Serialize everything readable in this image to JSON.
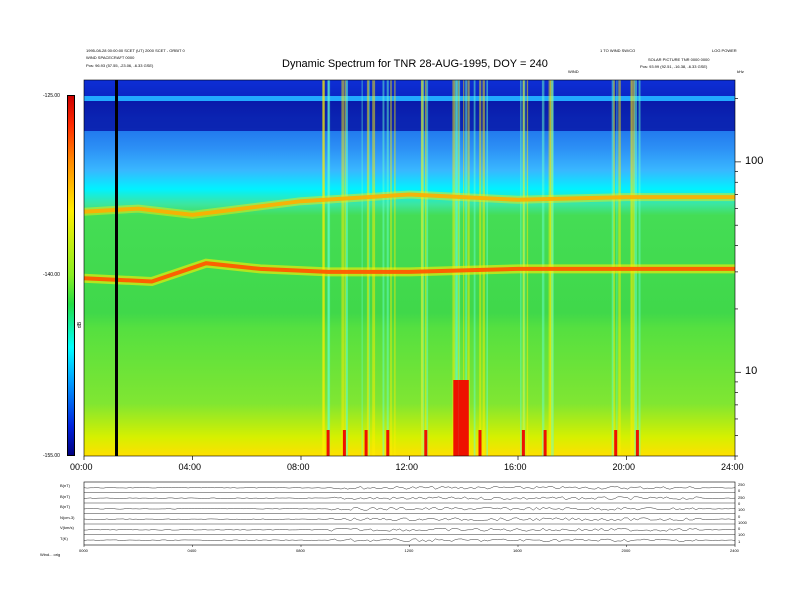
{
  "header": {
    "title": "Dynamic Spectrum for TNR 28-AUG-1995, DOY = 240",
    "left_line1": "1995-08-28 00:00:00 SCET (UT) 2000 SCET - ORBIT 0",
    "left_line2": "WIND SPACECRAFT 0000",
    "left_line3": "Pos:   96.93 (57.55, -23.06, -6.33 GSE)",
    "right_line1": "1 TO WIND SW/CO",
    "right_line1b": "LOG POWER",
    "right_line2": "SOLAR PICTURE   TNR 0000 0000",
    "right_line3": "Pos:   93.99 (92.51, -16.38, -6.33 GSE)",
    "center_small": "WIND",
    "khz_label": "kHz"
  },
  "colorbar": {
    "label": "dB",
    "ticks": [
      "-125.00",
      "-140.00",
      "-155.00"
    ]
  },
  "chart_data": {
    "type": "heatmap",
    "title": "Dynamic Spectrum for TNR 28-AUG-1995, DOY = 240",
    "x_ticks": [
      "00:00",
      "04:00",
      "08:00",
      "12:00",
      "16:00",
      "20:00",
      "24:00"
    ],
    "x_range_hours": [
      0,
      24
    ],
    "y_scale": "log",
    "y_range_khz": [
      4,
      245
    ],
    "y_ticks": [
      {
        "value": 10,
        "label": "10"
      },
      {
        "value": 100,
        "label": "100"
      }
    ],
    "color_range_db": [
      -155,
      -125
    ],
    "plasma_line_lower_khz": [
      {
        "t": 0.0,
        "f": 28
      },
      {
        "t": 2.5,
        "f": 27
      },
      {
        "t": 4.5,
        "f": 33
      },
      {
        "t": 6.5,
        "f": 31
      },
      {
        "t": 9.0,
        "f": 30
      },
      {
        "t": 12.0,
        "f": 30
      },
      {
        "t": 16.0,
        "f": 31
      },
      {
        "t": 20.0,
        "f": 31
      },
      {
        "t": 24.0,
        "f": 31
      }
    ],
    "plasma_line_upper_khz": [
      {
        "t": 0.0,
        "f": 58
      },
      {
        "t": 2.0,
        "f": 60
      },
      {
        "t": 4.0,
        "f": 56
      },
      {
        "t": 8.0,
        "f": 65
      },
      {
        "t": 12.0,
        "f": 70
      },
      {
        "t": 16.0,
        "f": 66
      },
      {
        "t": 20.0,
        "f": 68
      },
      {
        "t": 24.0,
        "f": 68
      }
    ],
    "bursts_hours": [
      9.0,
      9.6,
      10.4,
      11.2,
      12.6,
      13.8,
      14.0,
      14.6,
      16.2,
      17.0,
      19.6,
      20.4
    ],
    "vertical_marker_hour": 1.2
  },
  "panels": {
    "labels": [
      "B(nT)",
      "B(nT)",
      "B(nT)",
      "N(cm-3)",
      "V(km/s)",
      "T(K)"
    ],
    "right_values": [
      "250",
      "0",
      "250",
      "0",
      "100",
      "0",
      "1000",
      "0",
      "100",
      "1"
    ],
    "x_ticks": [
      "0000",
      "0400",
      "0800",
      "1200",
      "1600",
      "2000",
      "2400"
    ],
    "footer_left": "Wind... orig"
  }
}
